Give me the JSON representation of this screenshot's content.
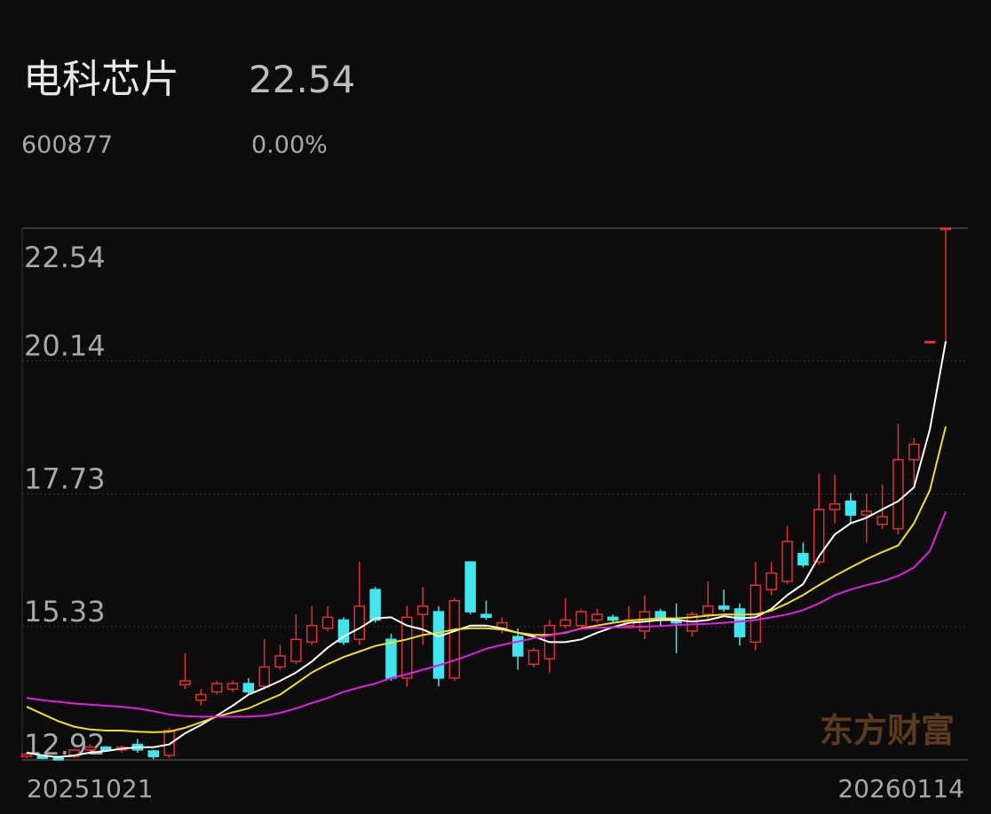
{
  "chart_data": {
    "type": "candlestick",
    "title": "电科芯片",
    "price": "22.54",
    "code": "600877",
    "change": "0.00%",
    "watermark": "东方财富",
    "categories": [
      "20251021",
      null,
      null,
      null,
      null,
      null,
      null,
      null,
      null,
      null,
      null,
      null,
      null,
      null,
      null,
      null,
      null,
      null,
      null,
      null,
      null,
      null,
      null,
      null,
      null,
      null,
      null,
      null,
      null,
      null,
      null,
      null,
      null,
      null,
      null,
      null,
      null,
      null,
      null,
      null,
      null,
      null,
      null,
      null,
      null,
      null,
      null,
      null,
      null,
      null,
      null,
      null,
      null,
      null,
      null,
      null,
      null,
      null,
      "20260114"
    ],
    "open": [
      12.98,
      13.0,
      12.98,
      12.98,
      13.1,
      13.15,
      13.1,
      13.2,
      13.08,
      13.0,
      14.28,
      14.0,
      14.15,
      14.2,
      14.3,
      14.25,
      14.6,
      14.7,
      15.05,
      15.3,
      15.45,
      15.1,
      16.0,
      15.1,
      14.4,
      15.55,
      15.6,
      14.4,
      16.5,
      15.55,
      15.3,
      15.15,
      14.65,
      14.75,
      15.35,
      15.35,
      15.45,
      15.5,
      15.35,
      15.25,
      15.6,
      15.45,
      15.25,
      15.55,
      15.7,
      15.65,
      15.05,
      16.0,
      16.15,
      16.65,
      16.5,
      17.45,
      17.6,
      17.35,
      17.18,
      17.1,
      18.35,
      20.49,
      22.54
    ],
    "high": [
      13.05,
      13.02,
      12.98,
      13.12,
      13.2,
      13.17,
      13.18,
      13.3,
      13.1,
      13.5,
      14.85,
      14.2,
      14.35,
      14.35,
      14.4,
      15.1,
      15.0,
      15.55,
      15.7,
      15.7,
      15.5,
      16.5,
      16.05,
      15.2,
      15.7,
      16.05,
      15.7,
      15.85,
      16.5,
      15.8,
      15.5,
      15.3,
      14.95,
      15.45,
      15.85,
      15.65,
      15.65,
      15.55,
      15.7,
      15.9,
      15.65,
      15.75,
      15.6,
      16.15,
      16.0,
      15.75,
      16.5,
      16.5,
      17.15,
      16.85,
      18.1,
      18.08,
      17.75,
      17.74,
      17.9,
      19.0,
      18.75,
      20.49,
      22.54
    ],
    "low": [
      12.95,
      12.93,
      12.92,
      12.95,
      13.05,
      13.08,
      13.05,
      13.05,
      12.93,
      12.95,
      14.2,
      13.9,
      14.1,
      14.15,
      14.1,
      14.2,
      14.55,
      14.65,
      15.0,
      15.25,
      15.0,
      15.0,
      15.4,
      14.35,
      14.25,
      15.0,
      14.25,
      14.35,
      15.55,
      15.45,
      15.2,
      14.55,
      14.6,
      14.5,
      15.3,
      15.3,
      15.4,
      15.4,
      15.3,
      15.1,
      15.35,
      14.85,
      15.15,
      15.45,
      15.6,
      14.99,
      14.9,
      15.9,
      16.1,
      16.4,
      16.45,
      17.2,
      17.2,
      16.85,
      17.1,
      17.0,
      17.9,
      20.49,
      20.49
    ],
    "close": [
      13.02,
      12.95,
      12.92,
      13.1,
      13.15,
      13.1,
      13.15,
      13.1,
      12.98,
      13.45,
      14.35,
      14.1,
      14.3,
      14.3,
      14.15,
      14.6,
      14.8,
      15.1,
      15.35,
      15.5,
      15.05,
      15.7,
      15.45,
      14.4,
      15.5,
      15.7,
      14.4,
      15.8,
      15.6,
      15.5,
      15.4,
      14.8,
      14.9,
      15.35,
      15.45,
      15.6,
      15.55,
      15.45,
      15.45,
      15.6,
      15.5,
      15.4,
      15.55,
      15.7,
      15.65,
      15.15,
      16.08,
      16.3,
      16.87,
      16.45,
      17.45,
      17.55,
      17.35,
      17.42,
      17.32,
      18.35,
      18.63,
      20.49,
      22.54
    ],
    "up_color": "#e0302c",
    "down_color": "#3fe6f0",
    "moving_averages": [
      {
        "color": "#ffffff",
        "values": [
          13.05,
          13.0,
          12.97,
          13.0,
          13.05,
          13.08,
          13.12,
          13.15,
          13.15,
          13.2,
          13.4,
          13.55,
          13.72,
          13.9,
          14.1,
          14.22,
          14.35,
          14.5,
          14.7,
          14.95,
          15.15,
          15.3,
          15.48,
          15.5,
          15.35,
          15.28,
          15.15,
          15.25,
          15.35,
          15.35,
          15.3,
          15.22,
          15.15,
          15.05,
          15.05,
          15.1,
          15.22,
          15.32,
          15.4,
          15.42,
          15.45,
          15.45,
          15.42,
          15.45,
          15.52,
          15.48,
          15.5,
          15.65,
          15.9,
          16.1,
          16.6,
          17.0,
          17.2,
          17.3,
          17.45,
          17.6,
          17.85,
          18.9,
          20.49
        ]
      },
      {
        "color": "#f0e020",
        "values": [
          13.88,
          13.75,
          13.62,
          13.52,
          13.47,
          13.45,
          13.45,
          13.43,
          13.42,
          13.43,
          13.5,
          13.6,
          13.7,
          13.78,
          13.85,
          13.98,
          14.1,
          14.3,
          14.5,
          14.65,
          14.78,
          14.88,
          14.98,
          15.04,
          15.1,
          15.18,
          15.22,
          15.28,
          15.3,
          15.3,
          15.28,
          15.22,
          15.18,
          15.18,
          15.22,
          15.3,
          15.35,
          15.4,
          15.44,
          15.46,
          15.48,
          15.48,
          15.5,
          15.53,
          15.55,
          15.55,
          15.55,
          15.62,
          15.75,
          15.9,
          16.08,
          16.25,
          16.4,
          16.55,
          16.68,
          16.8,
          17.2,
          17.8,
          18.95
        ]
      },
      {
        "color": "#e020e0",
        "values": [
          14.04,
          14.0,
          13.97,
          13.94,
          13.92,
          13.9,
          13.88,
          13.85,
          13.8,
          13.74,
          13.71,
          13.7,
          13.7,
          13.7,
          13.7,
          13.72,
          13.77,
          13.85,
          13.95,
          14.04,
          14.15,
          14.23,
          14.3,
          14.4,
          14.47,
          14.55,
          14.63,
          14.72,
          14.82,
          14.93,
          15.0,
          15.06,
          15.12,
          15.17,
          15.23,
          15.29,
          15.31,
          15.32,
          15.32,
          15.33,
          15.34,
          15.36,
          15.37,
          15.38,
          15.4,
          15.42,
          15.45,
          15.5,
          15.55,
          15.63,
          15.75,
          15.9,
          16.0,
          16.08,
          16.15,
          16.25,
          16.4,
          16.7,
          17.41
        ]
      }
    ],
    "ylim": [
      12.92,
      22.54
    ],
    "yticks": [
      22.54,
      20.14,
      17.73,
      15.33,
      12.92
    ],
    "grid": true
  }
}
